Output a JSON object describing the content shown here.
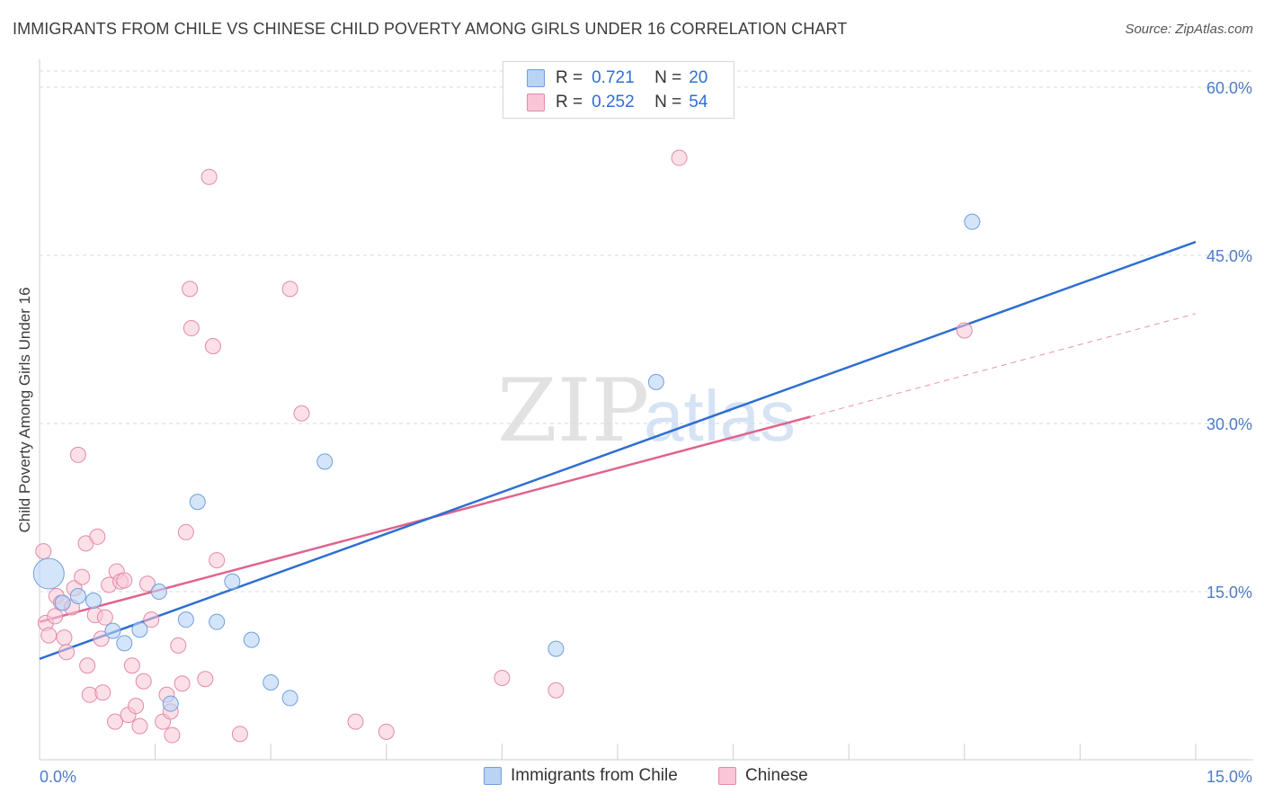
{
  "title": "IMMIGRANTS FROM CHILE VS CHINESE CHILD POVERTY AMONG GIRLS UNDER 16 CORRELATION CHART",
  "source": "Source: ZipAtlas.com",
  "watermark": {
    "zip": "ZIP",
    "atlas": "atlas"
  },
  "legend": {
    "rows": [
      {
        "r_label": "R =",
        "r_value": "0.721",
        "n_label": "N =",
        "n_value": "20"
      },
      {
        "r_label": "R =",
        "r_value": "0.252",
        "n_label": "N =",
        "n_value": "54"
      }
    ]
  },
  "bottom_legend": {
    "series1": "Immigrants from Chile",
    "series2": "Chinese"
  },
  "colors": {
    "chile_fill": "#b9d3f5",
    "chile_stroke": "#6f9fdc",
    "chile_line": "#2f6fd0",
    "chinese_fill": "#f8c6d6",
    "chinese_stroke": "#e48aa8",
    "chinese_line": "#e0648e",
    "grid": "#d9d9d9",
    "tick_label": "#4a7cc9"
  },
  "chart_data": {
    "type": "scatter",
    "xlabel": "",
    "ylabel": "Child Poverty Among Girls Under 16",
    "xlim": [
      0,
      15
    ],
    "ylim": [
      0,
      60
    ],
    "x_tick_labels": [
      "0.0%",
      "15.0%"
    ],
    "y_ticks": [
      15,
      30,
      45,
      60
    ],
    "y_tick_labels": [
      "15.0%",
      "30.0%",
      "45.0%",
      "60.0%"
    ],
    "grid": true,
    "legend_position": "top-center",
    "series": [
      {
        "name": "Immigrants from Chile",
        "r": 0.721,
        "n": 20,
        "points": [
          {
            "x": 0.12,
            "y": 16.6,
            "big": true
          },
          {
            "x": 0.3,
            "y": 14.0
          },
          {
            "x": 0.5,
            "y": 14.6
          },
          {
            "x": 0.7,
            "y": 14.2
          },
          {
            "x": 0.95,
            "y": 11.5
          },
          {
            "x": 1.1,
            "y": 10.4
          },
          {
            "x": 1.3,
            "y": 11.6
          },
          {
            "x": 1.55,
            "y": 15.0
          },
          {
            "x": 1.7,
            "y": 5.0
          },
          {
            "x": 1.9,
            "y": 12.5
          },
          {
            "x": 2.05,
            "y": 23.0
          },
          {
            "x": 2.3,
            "y": 12.3
          },
          {
            "x": 2.5,
            "y": 15.9
          },
          {
            "x": 2.75,
            "y": 10.7
          },
          {
            "x": 3.0,
            "y": 6.9
          },
          {
            "x": 3.25,
            "y": 5.5
          },
          {
            "x": 3.7,
            "y": 26.6
          },
          {
            "x": 6.7,
            "y": 9.9
          },
          {
            "x": 8.0,
            "y": 33.7
          },
          {
            "x": 12.1,
            "y": 48.0
          }
        ],
        "trend": {
          "x1": 0,
          "y1": 9.0,
          "x2": 15.0,
          "y2": 46.2
        }
      },
      {
        "name": "Chinese",
        "r": 0.252,
        "n": 54,
        "points": [
          {
            "x": 0.05,
            "y": 18.6
          },
          {
            "x": 0.08,
            "y": 12.2
          },
          {
            "x": 0.12,
            "y": 11.1
          },
          {
            "x": 0.2,
            "y": 12.8
          },
          {
            "x": 0.22,
            "y": 14.6
          },
          {
            "x": 0.28,
            "y": 14.0
          },
          {
            "x": 0.32,
            "y": 10.9
          },
          {
            "x": 0.35,
            "y": 9.6
          },
          {
            "x": 0.42,
            "y": 13.6
          },
          {
            "x": 0.45,
            "y": 15.3
          },
          {
            "x": 0.5,
            "y": 27.2
          },
          {
            "x": 0.55,
            "y": 16.3
          },
          {
            "x": 0.6,
            "y": 19.3
          },
          {
            "x": 0.62,
            "y": 8.4
          },
          {
            "x": 0.65,
            "y": 5.8
          },
          {
            "x": 0.72,
            "y": 12.9
          },
          {
            "x": 0.75,
            "y": 19.9
          },
          {
            "x": 0.8,
            "y": 10.8
          },
          {
            "x": 0.82,
            "y": 6.0
          },
          {
            "x": 0.85,
            "y": 12.7
          },
          {
            "x": 0.9,
            "y": 15.6
          },
          {
            "x": 0.98,
            "y": 3.4
          },
          {
            "x": 1.0,
            "y": 16.8
          },
          {
            "x": 1.05,
            "y": 15.9
          },
          {
            "x": 1.1,
            "y": 16.0
          },
          {
            "x": 1.15,
            "y": 4.0
          },
          {
            "x": 1.2,
            "y": 8.4
          },
          {
            "x": 1.25,
            "y": 4.8
          },
          {
            "x": 1.3,
            "y": 3.0
          },
          {
            "x": 1.35,
            "y": 7.0
          },
          {
            "x": 1.4,
            "y": 15.7
          },
          {
            "x": 1.45,
            "y": 12.5
          },
          {
            "x": 1.6,
            "y": 3.4
          },
          {
            "x": 1.65,
            "y": 5.8
          },
          {
            "x": 1.7,
            "y": 4.3
          },
          {
            "x": 1.72,
            "y": 2.2
          },
          {
            "x": 1.8,
            "y": 10.2
          },
          {
            "x": 1.85,
            "y": 6.8
          },
          {
            "x": 1.9,
            "y": 20.3
          },
          {
            "x": 1.95,
            "y": 42.0
          },
          {
            "x": 1.97,
            "y": 38.5
          },
          {
            "x": 2.15,
            "y": 7.2
          },
          {
            "x": 2.2,
            "y": 52.0
          },
          {
            "x": 2.25,
            "y": 36.9
          },
          {
            "x": 2.3,
            "y": 17.8
          },
          {
            "x": 2.6,
            "y": 2.3
          },
          {
            "x": 3.25,
            "y": 42.0
          },
          {
            "x": 3.4,
            "y": 30.9
          },
          {
            "x": 4.1,
            "y": 3.4
          },
          {
            "x": 4.5,
            "y": 2.5
          },
          {
            "x": 6.0,
            "y": 7.3
          },
          {
            "x": 6.7,
            "y": 6.2
          },
          {
            "x": 8.3,
            "y": 53.7
          },
          {
            "x": 12.0,
            "y": 38.3
          }
        ],
        "trend": {
          "x1": 0,
          "y1": 12.3,
          "x2": 10.0,
          "y2": 30.6
        },
        "trend_dashed": {
          "x1": 10.0,
          "y1": 30.6,
          "x2": 15.0,
          "y2": 39.8
        }
      }
    ]
  }
}
